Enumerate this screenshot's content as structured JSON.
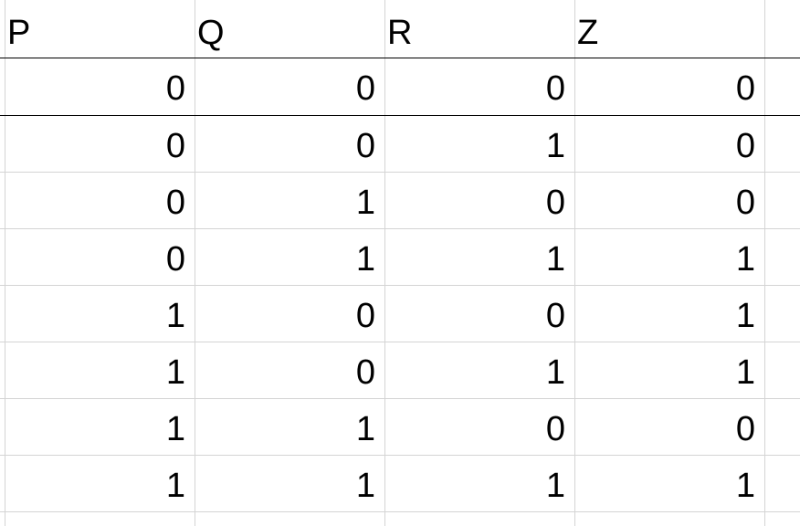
{
  "headers": [
    "P",
    "Q",
    "R",
    "Z"
  ],
  "rows": [
    [
      "0",
      "0",
      "0",
      "0"
    ],
    [
      "0",
      "0",
      "1",
      "0"
    ],
    [
      "0",
      "1",
      "0",
      "0"
    ],
    [
      "0",
      "1",
      "1",
      "1"
    ],
    [
      "1",
      "0",
      "0",
      "1"
    ],
    [
      "1",
      "0",
      "1",
      "1"
    ],
    [
      "1",
      "1",
      "0",
      "0"
    ],
    [
      "1",
      "1",
      "1",
      "1"
    ]
  ]
}
